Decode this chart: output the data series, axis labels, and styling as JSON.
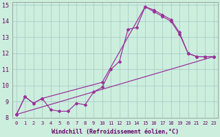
{
  "xlabel": "Windchill (Refroidissement éolien,°C)",
  "bg_color": "#cceedd",
  "grid_color": "#aacccc",
  "line_color": "#993399",
  "xlim": [
    -0.5,
    23.5
  ],
  "ylim": [
    8,
    15.2
  ],
  "yticks": [
    8,
    9,
    10,
    11,
    12,
    13,
    14,
    15
  ],
  "xticks": [
    0,
    1,
    2,
    3,
    4,
    5,
    6,
    7,
    8,
    9,
    10,
    11,
    12,
    13,
    14,
    15,
    16,
    17,
    18,
    19,
    20,
    21,
    22,
    23
  ],
  "line1_x": [
    0,
    1,
    2,
    3,
    4,
    5,
    6,
    7,
    8,
    9,
    10,
    11,
    12,
    13,
    14,
    15,
    16,
    17,
    18,
    19,
    20,
    21,
    22,
    23
  ],
  "line1_y": [
    8.2,
    9.3,
    8.9,
    9.2,
    8.5,
    8.4,
    8.4,
    8.9,
    8.8,
    9.6,
    9.9,
    11.0,
    11.5,
    13.5,
    13.6,
    14.9,
    14.6,
    14.3,
    14.0,
    13.2,
    12.0,
    11.8,
    11.8,
    11.8
  ],
  "line2_x": [
    0,
    1,
    2,
    3,
    10,
    15,
    16,
    17,
    18,
    19,
    20,
    21,
    22,
    23
  ],
  "line2_y": [
    8.2,
    9.3,
    8.9,
    9.2,
    10.2,
    14.9,
    14.7,
    14.4,
    14.1,
    13.3,
    12.0,
    11.8,
    11.8,
    11.8
  ],
  "line3_x": [
    0,
    23
  ],
  "line3_y": [
    8.2,
    11.8
  ],
  "marker": "D",
  "markersize": 2,
  "linewidth": 0.9,
  "tick_fontsize": 5,
  "xlabel_fontsize": 6
}
